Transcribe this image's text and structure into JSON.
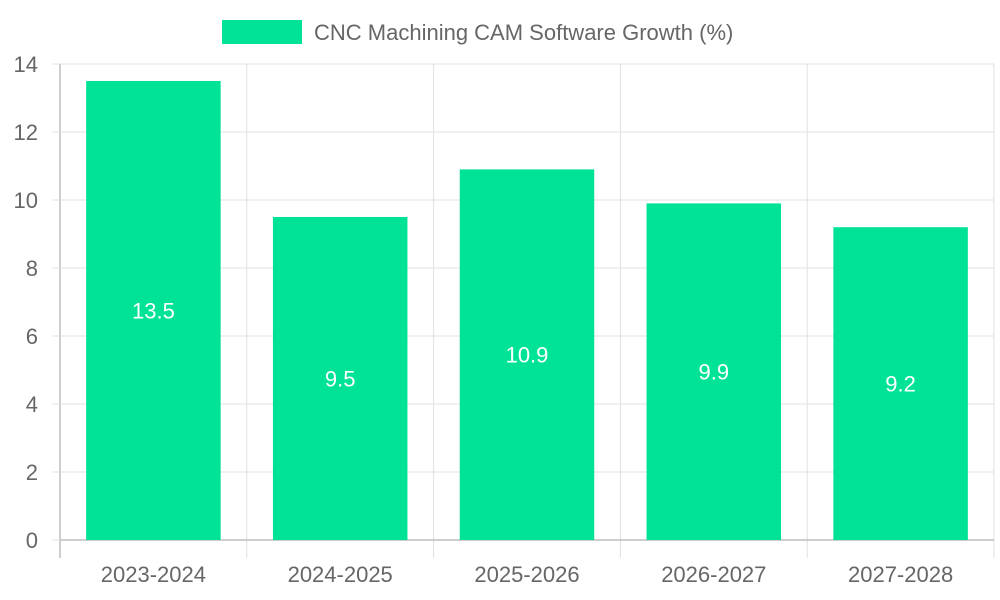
{
  "chart_data": {
    "type": "bar",
    "categories": [
      "2023-2024",
      "2024-2025",
      "2025-2026",
      "2026-2027",
      "2027-2028"
    ],
    "series": [
      {
        "name": "CNC Machining CAM Software Growth (%)",
        "values": [
          13.5,
          9.5,
          10.9,
          9.9,
          9.2
        ]
      }
    ],
    "ylim": [
      0,
      14
    ],
    "yticks": [
      0,
      2,
      4,
      6,
      8,
      10,
      12,
      14
    ],
    "grid": true,
    "legend": "top-center",
    "data_labels": true,
    "colors": {
      "bar": "#00e396",
      "grid": "#e0e0e0",
      "axis": "#bdbdbd",
      "text": "#666666",
      "data_label": "#ffffff"
    }
  }
}
